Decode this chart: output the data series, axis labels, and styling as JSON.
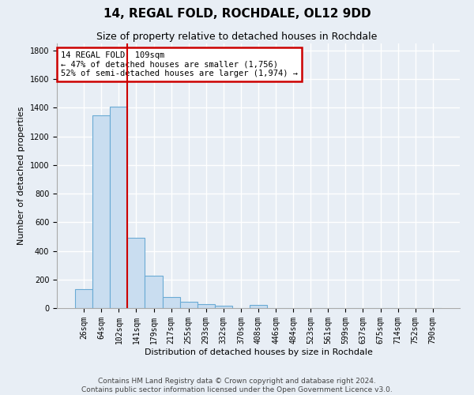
{
  "title": "14, REGAL FOLD, ROCHDALE, OL12 9DD",
  "subtitle": "Size of property relative to detached houses in Rochdale",
  "xlabel": "Distribution of detached houses by size in Rochdale",
  "ylabel": "Number of detached properties",
  "categories": [
    "26sqm",
    "64sqm",
    "102sqm",
    "141sqm",
    "179sqm",
    "217sqm",
    "255sqm",
    "293sqm",
    "332sqm",
    "370sqm",
    "408sqm",
    "446sqm",
    "484sqm",
    "523sqm",
    "561sqm",
    "599sqm",
    "637sqm",
    "675sqm",
    "714sqm",
    "752sqm",
    "790sqm"
  ],
  "values": [
    135,
    1350,
    1410,
    490,
    225,
    75,
    45,
    28,
    15,
    0,
    20,
    0,
    0,
    0,
    0,
    0,
    0,
    0,
    0,
    0,
    0
  ],
  "bar_color": "#c9ddf0",
  "bar_edge_color": "#6aaad4",
  "vline_x_index": 2,
  "vline_color": "#cc0000",
  "annotation_text": "14 REGAL FOLD: 109sqm\n← 47% of detached houses are smaller (1,756)\n52% of semi-detached houses are larger (1,974) →",
  "annotation_box_color": "#ffffff",
  "annotation_box_edge_color": "#cc0000",
  "ylim": [
    0,
    1850
  ],
  "yticks": [
    0,
    200,
    400,
    600,
    800,
    1000,
    1200,
    1400,
    1600,
    1800
  ],
  "footer": "Contains HM Land Registry data © Crown copyright and database right 2024.\nContains public sector information licensed under the Open Government Licence v3.0.",
  "background_color": "#e8eef5",
  "plot_background_color": "#e8eef5",
  "grid_color": "#ffffff",
  "title_fontsize": 11,
  "subtitle_fontsize": 9,
  "axis_label_fontsize": 8,
  "tick_fontsize": 7,
  "footer_fontsize": 6.5
}
